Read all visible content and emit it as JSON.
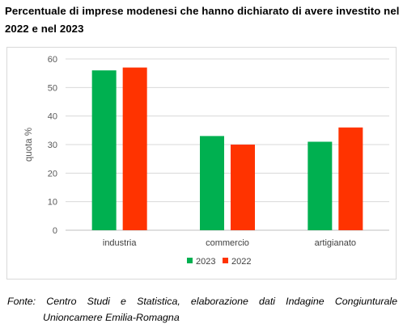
{
  "title": "Percentuale di imprese modenesi che hanno dichiarato di avere investito nel 2022 e nel 2023",
  "source": {
    "line1_words": [
      "Fonte:",
      "Centro",
      "Studi",
      "e",
      "Statistica,",
      "elaborazione",
      "dati",
      "Indagine",
      "Congiunturale"
    ],
    "line2": "Unioncamere Emilia-Romagna"
  },
  "chart_data": {
    "type": "bar",
    "categories": [
      "industria",
      "commercio",
      "artigianato"
    ],
    "series": [
      {
        "name": "2023",
        "color": "#00b050",
        "values": [
          56,
          33,
          31
        ]
      },
      {
        "name": "2022",
        "color": "#ff3300",
        "values": [
          57,
          30,
          36
        ]
      }
    ],
    "ylabel": "quota %",
    "xlabel": "",
    "ylim": [
      0,
      60
    ],
    "yticks": [
      0,
      10,
      20,
      30,
      40,
      50,
      60
    ],
    "grid": true,
    "legend": "bottom-center"
  }
}
